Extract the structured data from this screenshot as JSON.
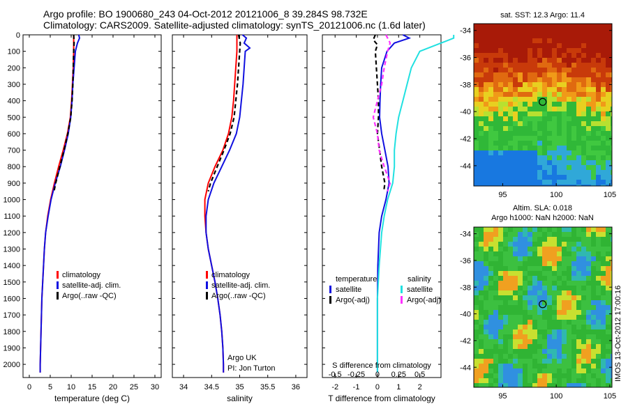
{
  "title_line1": "Argo profile: BO 1900680_243 04-Oct-2012 20121006_8 39.284S 98.732E",
  "title_line2": "Climatology: CARS2009. Satellite-adjusted climatology: synTS_20121006.nc (1.6d later)",
  "credit": {
    "line1": "Argo UK",
    "line2": "PI: Jon Turton"
  },
  "diff_legend": {
    "temperature_head": "temperature",
    "salinity_head": "salinity",
    "t_items": [
      "satellite",
      "Argo(-adj)"
    ],
    "s_items": [
      "satellite",
      "Argo(-adj)"
    ]
  },
  "colors": {
    "red": "#ff0000",
    "blue": "#1010e0",
    "black": "#000000",
    "cyan": "#20e0e0",
    "magenta": "#ff30ff"
  },
  "map1": {
    "title": "sat. SST: 12.3 Argo: 11.4"
  },
  "map2": {
    "title_line1": "Altim. SLA: 0.018",
    "title_line2": "Argo h1000: NaN h2000: NaN"
  },
  "vertical_stamp": "IMOS 13-Oct-2012 17:00:16",
  "chart_data": [
    {
      "type": "line",
      "xlabel": "temperature (deg C)",
      "ylabel": "",
      "xlim": [
        -1.5,
        31.5
      ],
      "ylim": [
        2080,
        0
      ],
      "xticks": [
        0,
        5,
        10,
        15,
        20,
        25,
        30
      ],
      "yticks": [
        0,
        100,
        200,
        300,
        400,
        500,
        600,
        700,
        800,
        900,
        1000,
        1100,
        1200,
        1300,
        1400,
        1500,
        1600,
        1700,
        1800,
        1900,
        2000
      ],
      "legend": [
        "climatology",
        "satellite-adj. clim.",
        "Argo(..raw -QC)"
      ],
      "legend_position": "lower-right",
      "series": [
        {
          "name": "climatology",
          "color": "#ff0000",
          "dash": "solid",
          "depth": [
            0,
            100,
            200,
            300,
            400,
            500,
            600,
            700,
            800,
            900,
            1000,
            1100,
            1200,
            1300,
            1400,
            1500,
            1600,
            1800,
            2000,
            2050
          ],
          "values": [
            10.6,
            10.6,
            10.5,
            10.3,
            10.1,
            9.8,
            9.1,
            8.1,
            7.0,
            6.0,
            5.1,
            4.4,
            3.9,
            3.6,
            3.4,
            3.2,
            3.0,
            2.8,
            2.6,
            2.6
          ]
        },
        {
          "name": "satellite-adj. clim.",
          "color": "#1010e0",
          "dash": "solid",
          "depth": [
            0,
            20,
            50,
            100,
            200,
            300,
            400,
            500,
            600,
            700,
            800,
            900,
            1000,
            1100,
            1200,
            1300,
            1400,
            1500,
            1600,
            1800,
            2000,
            2050
          ],
          "values": [
            11.8,
            12.0,
            11.5,
            11.0,
            10.7,
            10.4,
            10.2,
            9.9,
            9.3,
            8.4,
            7.4,
            6.2,
            5.2,
            4.5,
            3.9,
            3.6,
            3.4,
            3.2,
            3.0,
            2.8,
            2.6,
            2.6
          ]
        },
        {
          "name": "Argo(..raw -QC)",
          "color": "#000000",
          "dash": "dash",
          "depth": [
            0,
            50,
            100,
            200,
            300,
            400,
            500,
            600,
            700,
            800,
            900,
            950
          ],
          "values": [
            10.6,
            10.7,
            10.6,
            10.5,
            10.4,
            10.2,
            9.9,
            9.2,
            8.3,
            7.3,
            6.3,
            5.9
          ]
        }
      ]
    },
    {
      "type": "line",
      "xlabel": "salinity",
      "ylabel": "",
      "xlim": [
        33.8,
        36.2
      ],
      "ylim": [
        2080,
        0
      ],
      "xticks": [
        34,
        34.5,
        35,
        35.5,
        36
      ],
      "yticks": [
        0,
        100,
        200,
        300,
        400,
        500,
        600,
        700,
        800,
        900,
        1000,
        1100,
        1200,
        1300,
        1400,
        1500,
        1600,
        1700,
        1800,
        1900,
        2000
      ],
      "legend": [
        "climatology",
        "satellite-adj. clim.",
        "Argo(..raw -QC)"
      ],
      "legend_position": "lower-right",
      "series": [
        {
          "name": "climatology",
          "color": "#ff0000",
          "dash": "solid",
          "depth": [
            0,
            100,
            200,
            300,
            400,
            500,
            600,
            700,
            800,
            900,
            1000,
            1100,
            1200,
            1300,
            1400,
            1500,
            1600,
            1700,
            1800,
            1900,
            2000,
            2050
          ],
          "values": [
            34.95,
            34.95,
            34.93,
            34.91,
            34.89,
            34.86,
            34.8,
            34.7,
            34.56,
            34.44,
            34.38,
            34.38,
            34.4,
            34.44,
            34.5,
            34.56,
            34.61,
            34.65,
            34.68,
            34.7,
            34.71,
            34.71
          ]
        },
        {
          "name": "satellite-adj. clim.",
          "color": "#1010e0",
          "dash": "solid",
          "depth": [
            0,
            20,
            50,
            80,
            100,
            200,
            300,
            400,
            500,
            600,
            700,
            800,
            900,
            1000,
            1100,
            1200,
            1300,
            1400,
            1500,
            1600,
            1700,
            1800,
            1900,
            2000,
            2050
          ],
          "values": [
            35.05,
            35.12,
            35.08,
            35.18,
            35.1,
            35.08,
            35.06,
            35.03,
            35.0,
            34.94,
            34.82,
            34.68,
            34.54,
            34.44,
            34.4,
            34.4,
            34.44,
            34.5,
            34.56,
            34.61,
            34.65,
            34.68,
            34.7,
            34.71,
            34.71
          ]
        },
        {
          "name": "Argo(..raw -QC)",
          "color": "#000000",
          "dash": "dash",
          "depth": [
            0,
            50,
            100,
            200,
            300,
            400,
            500,
            600,
            700,
            800,
            900,
            950
          ],
          "values": [
            34.98,
            35.01,
            35.0,
            34.98,
            34.96,
            34.93,
            34.9,
            34.83,
            34.72,
            34.6,
            34.48,
            34.44
          ]
        }
      ]
    },
    {
      "type": "line",
      "xlabel": "T difference from climatology",
      "ylabel": "",
      "xlim": [
        -2.6,
        3.0
      ],
      "ylim": [
        2080,
        0
      ],
      "xticks": [
        -2,
        -1,
        0,
        1,
        2
      ],
      "yticks": [
        0,
        100,
        200,
        300,
        400,
        500,
        600,
        700,
        800,
        900,
        1000,
        1100,
        1200,
        1300,
        1400,
        1500,
        1600,
        1700,
        1800,
        1900,
        2000
      ],
      "secondary_xlabel": "S difference from climatology",
      "secondary_xticks": [
        -0.5,
        -0.25,
        0,
        0.25,
        0.5
      ],
      "secondary_xtick_labels": [
        "-0.5",
        "-0.25",
        "0",
        "0.25",
        "0.5"
      ],
      "series": [
        {
          "name": "satellite",
          "color": "#1010e0",
          "dash": "solid",
          "quantity": "temperature",
          "depth": [
            0,
            20,
            50,
            100,
            200,
            300,
            400,
            500,
            600,
            700,
            800,
            900,
            1000,
            1100,
            1200,
            1400,
            1600,
            2050
          ],
          "values": [
            1.2,
            1.5,
            0.8,
            0.45,
            0.2,
            0.15,
            0.12,
            0.1,
            0.2,
            0.35,
            0.5,
            0.55,
            0.4,
            0.2,
            0.08,
            0.02,
            0.0,
            0.0
          ]
        },
        {
          "name": "Argo(-adj)",
          "color": "#000000",
          "dash": "dash",
          "quantity": "temperature",
          "depth": [
            0,
            30,
            60,
            100,
            200,
            300,
            400,
            500,
            600,
            700,
            800,
            900,
            950
          ],
          "values": [
            -0.1,
            -0.2,
            0.0,
            -0.1,
            -0.05,
            0.0,
            0.05,
            0.05,
            0.0,
            0.1,
            0.2,
            0.35,
            0.3
          ]
        },
        {
          "name": "satellite",
          "color": "#20e0e0",
          "dash": "solid",
          "quantity": "salinity",
          "depth": [
            0,
            20,
            60,
            100,
            200,
            300,
            400,
            500,
            600,
            700,
            800,
            900,
            1000,
            1100,
            1200,
            1400,
            1600,
            2050
          ],
          "values": [
            0.9,
            0.9,
            0.7,
            0.5,
            0.4,
            0.35,
            0.3,
            0.25,
            0.22,
            0.2,
            0.2,
            0.18,
            0.12,
            0.08,
            0.05,
            0.02,
            0.0,
            0.0
          ]
        },
        {
          "name": "Argo(-adj)",
          "color": "#ff30ff",
          "dash": "dash",
          "quantity": "salinity",
          "depth": [
            0,
            50,
            100,
            200,
            300,
            400,
            500,
            600,
            700,
            800,
            900,
            950
          ],
          "values": [
            0.1,
            0.15,
            0.12,
            0.08,
            0.05,
            0.0,
            -0.05,
            0.0,
            0.02,
            0.08,
            0.15,
            0.12
          ]
        }
      ]
    },
    {
      "type": "heatmap",
      "title": "sat. SST: 12.3 Argo: 11.4",
      "xlim": [
        92.3,
        105.2
      ],
      "ylim": [
        -45.5,
        -33.5
      ],
      "xticks": [
        95,
        100,
        105
      ],
      "yticks": [
        -34,
        -36,
        -38,
        -40,
        -42,
        -44
      ],
      "marker": {
        "lon": 98.73,
        "lat": -39.28
      }
    },
    {
      "type": "heatmap",
      "title": "Altim. SLA: 0.018",
      "xlim": [
        92.3,
        105.2
      ],
      "ylim": [
        -45.5,
        -33.5
      ],
      "xticks": [
        95,
        100,
        105
      ],
      "yticks": [
        -34,
        -36,
        -38,
        -40,
        -42,
        -44
      ],
      "marker": {
        "lon": 98.73,
        "lat": -39.28
      }
    }
  ]
}
